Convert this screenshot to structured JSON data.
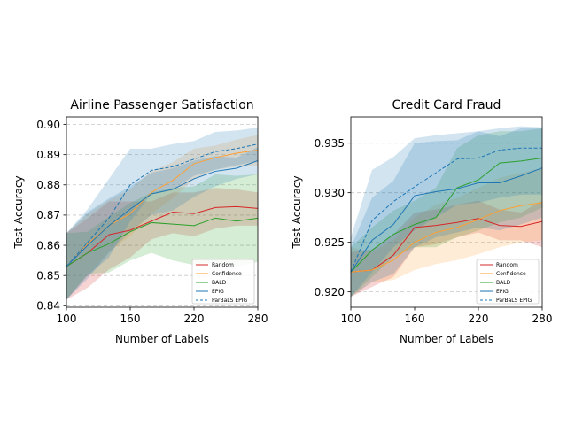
{
  "chart_data": [
    {
      "type": "line",
      "title": "Airline Passenger Satisfaction",
      "xlabel": "Number of Labels",
      "ylabel": "Test Accuracy",
      "xlim": [
        100,
        280
      ],
      "ylim": [
        0.8395,
        0.9025
      ],
      "xticks": [
        100,
        160,
        220,
        280
      ],
      "yticks": [
        0.84,
        0.85,
        0.86,
        0.87,
        0.88,
        0.89,
        0.9
      ],
      "ytick_labels": [
        "0.84",
        "0.85",
        "0.86",
        "0.87",
        "0.88",
        "0.89",
        "0.90"
      ],
      "grid": "horizontal-dashed",
      "legend_position": "lower-right",
      "x": [
        100,
        120,
        140,
        160,
        180,
        200,
        220,
        240,
        260,
        280
      ],
      "series": [
        {
          "name": "Random",
          "color": "#d62728",
          "dashed": false,
          "values": [
            0.853,
            0.8575,
            0.8635,
            0.865,
            0.868,
            0.871,
            0.8705,
            0.8725,
            0.8728,
            0.8722
          ],
          "lower": [
            0.842,
            0.846,
            0.852,
            0.856,
            0.862,
            0.864,
            0.863,
            0.8655,
            0.8665,
            0.8665
          ],
          "upper": [
            0.864,
            0.869,
            0.8745,
            0.8745,
            0.8745,
            0.8775,
            0.8775,
            0.879,
            0.8785,
            0.8775
          ]
        },
        {
          "name": "Confidence",
          "color": "#ff9f32",
          "dashed": false,
          "values": [
            0.853,
            0.8605,
            0.8665,
            0.8705,
            0.8775,
            0.8815,
            0.887,
            0.889,
            0.8905,
            0.8915
          ],
          "lower": [
            0.842,
            0.85,
            0.858,
            0.863,
            0.8705,
            0.8755,
            0.882,
            0.885,
            0.886,
            0.8865
          ],
          "upper": [
            0.864,
            0.8705,
            0.875,
            0.8785,
            0.8845,
            0.8875,
            0.892,
            0.893,
            0.895,
            0.8965
          ]
        },
        {
          "name": "BALD",
          "color": "#2ca02c",
          "dashed": false,
          "values": [
            0.853,
            0.8575,
            0.8605,
            0.8645,
            0.8675,
            0.867,
            0.8665,
            0.869,
            0.868,
            0.869
          ],
          "lower": [
            0.842,
            0.8505,
            0.851,
            0.855,
            0.8575,
            0.855,
            0.8535,
            0.8545,
            0.853,
            0.8545
          ],
          "upper": [
            0.864,
            0.8645,
            0.8695,
            0.874,
            0.8775,
            0.879,
            0.8795,
            0.8835,
            0.883,
            0.8835
          ]
        },
        {
          "name": "EPIG",
          "color": "#1f77b4",
          "dashed": false,
          "values": [
            0.853,
            0.86,
            0.8665,
            0.872,
            0.877,
            0.8785,
            0.882,
            0.8845,
            0.8855,
            0.888
          ],
          "lower": [
            0.842,
            0.849,
            0.8575,
            0.8645,
            0.87,
            0.8715,
            0.876,
            0.8795,
            0.882,
            0.8835
          ],
          "upper": [
            0.864,
            0.871,
            0.8755,
            0.8795,
            0.884,
            0.8855,
            0.888,
            0.8895,
            0.889,
            0.8925
          ]
        },
        {
          "name": "ParBaLS EPIG",
          "color": "#1f77b4",
          "dashed": true,
          "values": [
            0.853,
            0.861,
            0.869,
            0.88,
            0.8848,
            0.886,
            0.8885,
            0.891,
            0.892,
            0.8935
          ],
          "lower": [
            0.842,
            0.85,
            0.856,
            0.868,
            0.877,
            0.8785,
            0.883,
            0.885,
            0.8865,
            0.888
          ],
          "upper": [
            0.864,
            0.872,
            0.882,
            0.892,
            0.892,
            0.8935,
            0.8945,
            0.8975,
            0.898,
            0.899
          ]
        }
      ]
    },
    {
      "type": "line",
      "title": "Credit Card Fraud",
      "xlabel": "Number of Labels",
      "ylabel": "Test Accuracy",
      "xlim": [
        100,
        280
      ],
      "ylim": [
        0.91845,
        0.93765
      ],
      "xticks": [
        100,
        160,
        220,
        280
      ],
      "yticks": [
        0.92,
        0.925,
        0.93,
        0.935
      ],
      "ytick_labels": [
        "0.920",
        "0.925",
        "0.930",
        "0.935"
      ],
      "grid": "horizontal-dashed",
      "legend_position": "lower-right",
      "x": [
        100,
        120,
        140,
        160,
        180,
        200,
        220,
        240,
        260,
        280
      ],
      "series": [
        {
          "name": "Random",
          "color": "#d62728",
          "dashed": false,
          "values": [
            0.922,
            0.9222,
            0.9237,
            0.9265,
            0.9267,
            0.927,
            0.9274,
            0.9267,
            0.9266,
            0.9271
          ],
          "lower": [
            0.9195,
            0.9205,
            0.9215,
            0.9245,
            0.9248,
            0.9255,
            0.926,
            0.9252,
            0.9252,
            0.9245
          ],
          "upper": [
            0.924,
            0.9243,
            0.9258,
            0.928,
            0.9283,
            0.9288,
            0.9292,
            0.9283,
            0.928,
            0.9292
          ]
        },
        {
          "name": "Confidence",
          "color": "#ff9f32",
          "dashed": false,
          "values": [
            0.922,
            0.9222,
            0.9232,
            0.925,
            0.926,
            0.9265,
            0.9273,
            0.9282,
            0.9287,
            0.929
          ],
          "lower": [
            0.9195,
            0.921,
            0.9212,
            0.9222,
            0.9228,
            0.9232,
            0.9238,
            0.9245,
            0.925,
            0.9252
          ],
          "upper": [
            0.9245,
            0.924,
            0.9252,
            0.9275,
            0.9288,
            0.9295,
            0.9305,
            0.9315,
            0.932,
            0.9325
          ]
        },
        {
          "name": "BALD",
          "color": "#2ca02c",
          "dashed": false,
          "values": [
            0.922,
            0.9242,
            0.9258,
            0.9268,
            0.9275,
            0.9305,
            0.9313,
            0.933,
            0.9332,
            0.9335
          ],
          "lower": [
            0.9195,
            0.9215,
            0.9235,
            0.9245,
            0.9245,
            0.9255,
            0.9262,
            0.927,
            0.9275,
            0.9285
          ],
          "upper": [
            0.9245,
            0.9265,
            0.9282,
            0.9292,
            0.9305,
            0.9345,
            0.9358,
            0.9362,
            0.9362,
            0.9365
          ]
        },
        {
          "name": "EPIG",
          "color": "#1f77b4",
          "dashed": false,
          "values": [
            0.922,
            0.9252,
            0.9268,
            0.9297,
            0.9301,
            0.9304,
            0.931,
            0.931,
            0.9317,
            0.9325
          ],
          "lower": [
            0.9195,
            0.921,
            0.9218,
            0.9245,
            0.9255,
            0.926,
            0.9265,
            0.9262,
            0.9268,
            0.9275
          ],
          "upper": [
            0.9245,
            0.9295,
            0.9312,
            0.935,
            0.9352,
            0.9353,
            0.9362,
            0.9357,
            0.9365,
            0.9365
          ]
        },
        {
          "name": "ParBaLS EPIG",
          "color": "#1f77b4",
          "dashed": true,
          "values": [
            0.922,
            0.9272,
            0.9291,
            0.9306,
            0.932,
            0.9334,
            0.9335,
            0.9343,
            0.9345,
            0.9345
          ],
          "lower": [
            0.9195,
            0.922,
            0.9245,
            0.9262,
            0.9275,
            0.9288,
            0.929,
            0.9295,
            0.9298,
            0.9298
          ],
          "upper": [
            0.9255,
            0.9323,
            0.9336,
            0.9355,
            0.9358,
            0.936,
            0.9362,
            0.9365,
            0.9367,
            0.9366
          ]
        }
      ]
    }
  ]
}
